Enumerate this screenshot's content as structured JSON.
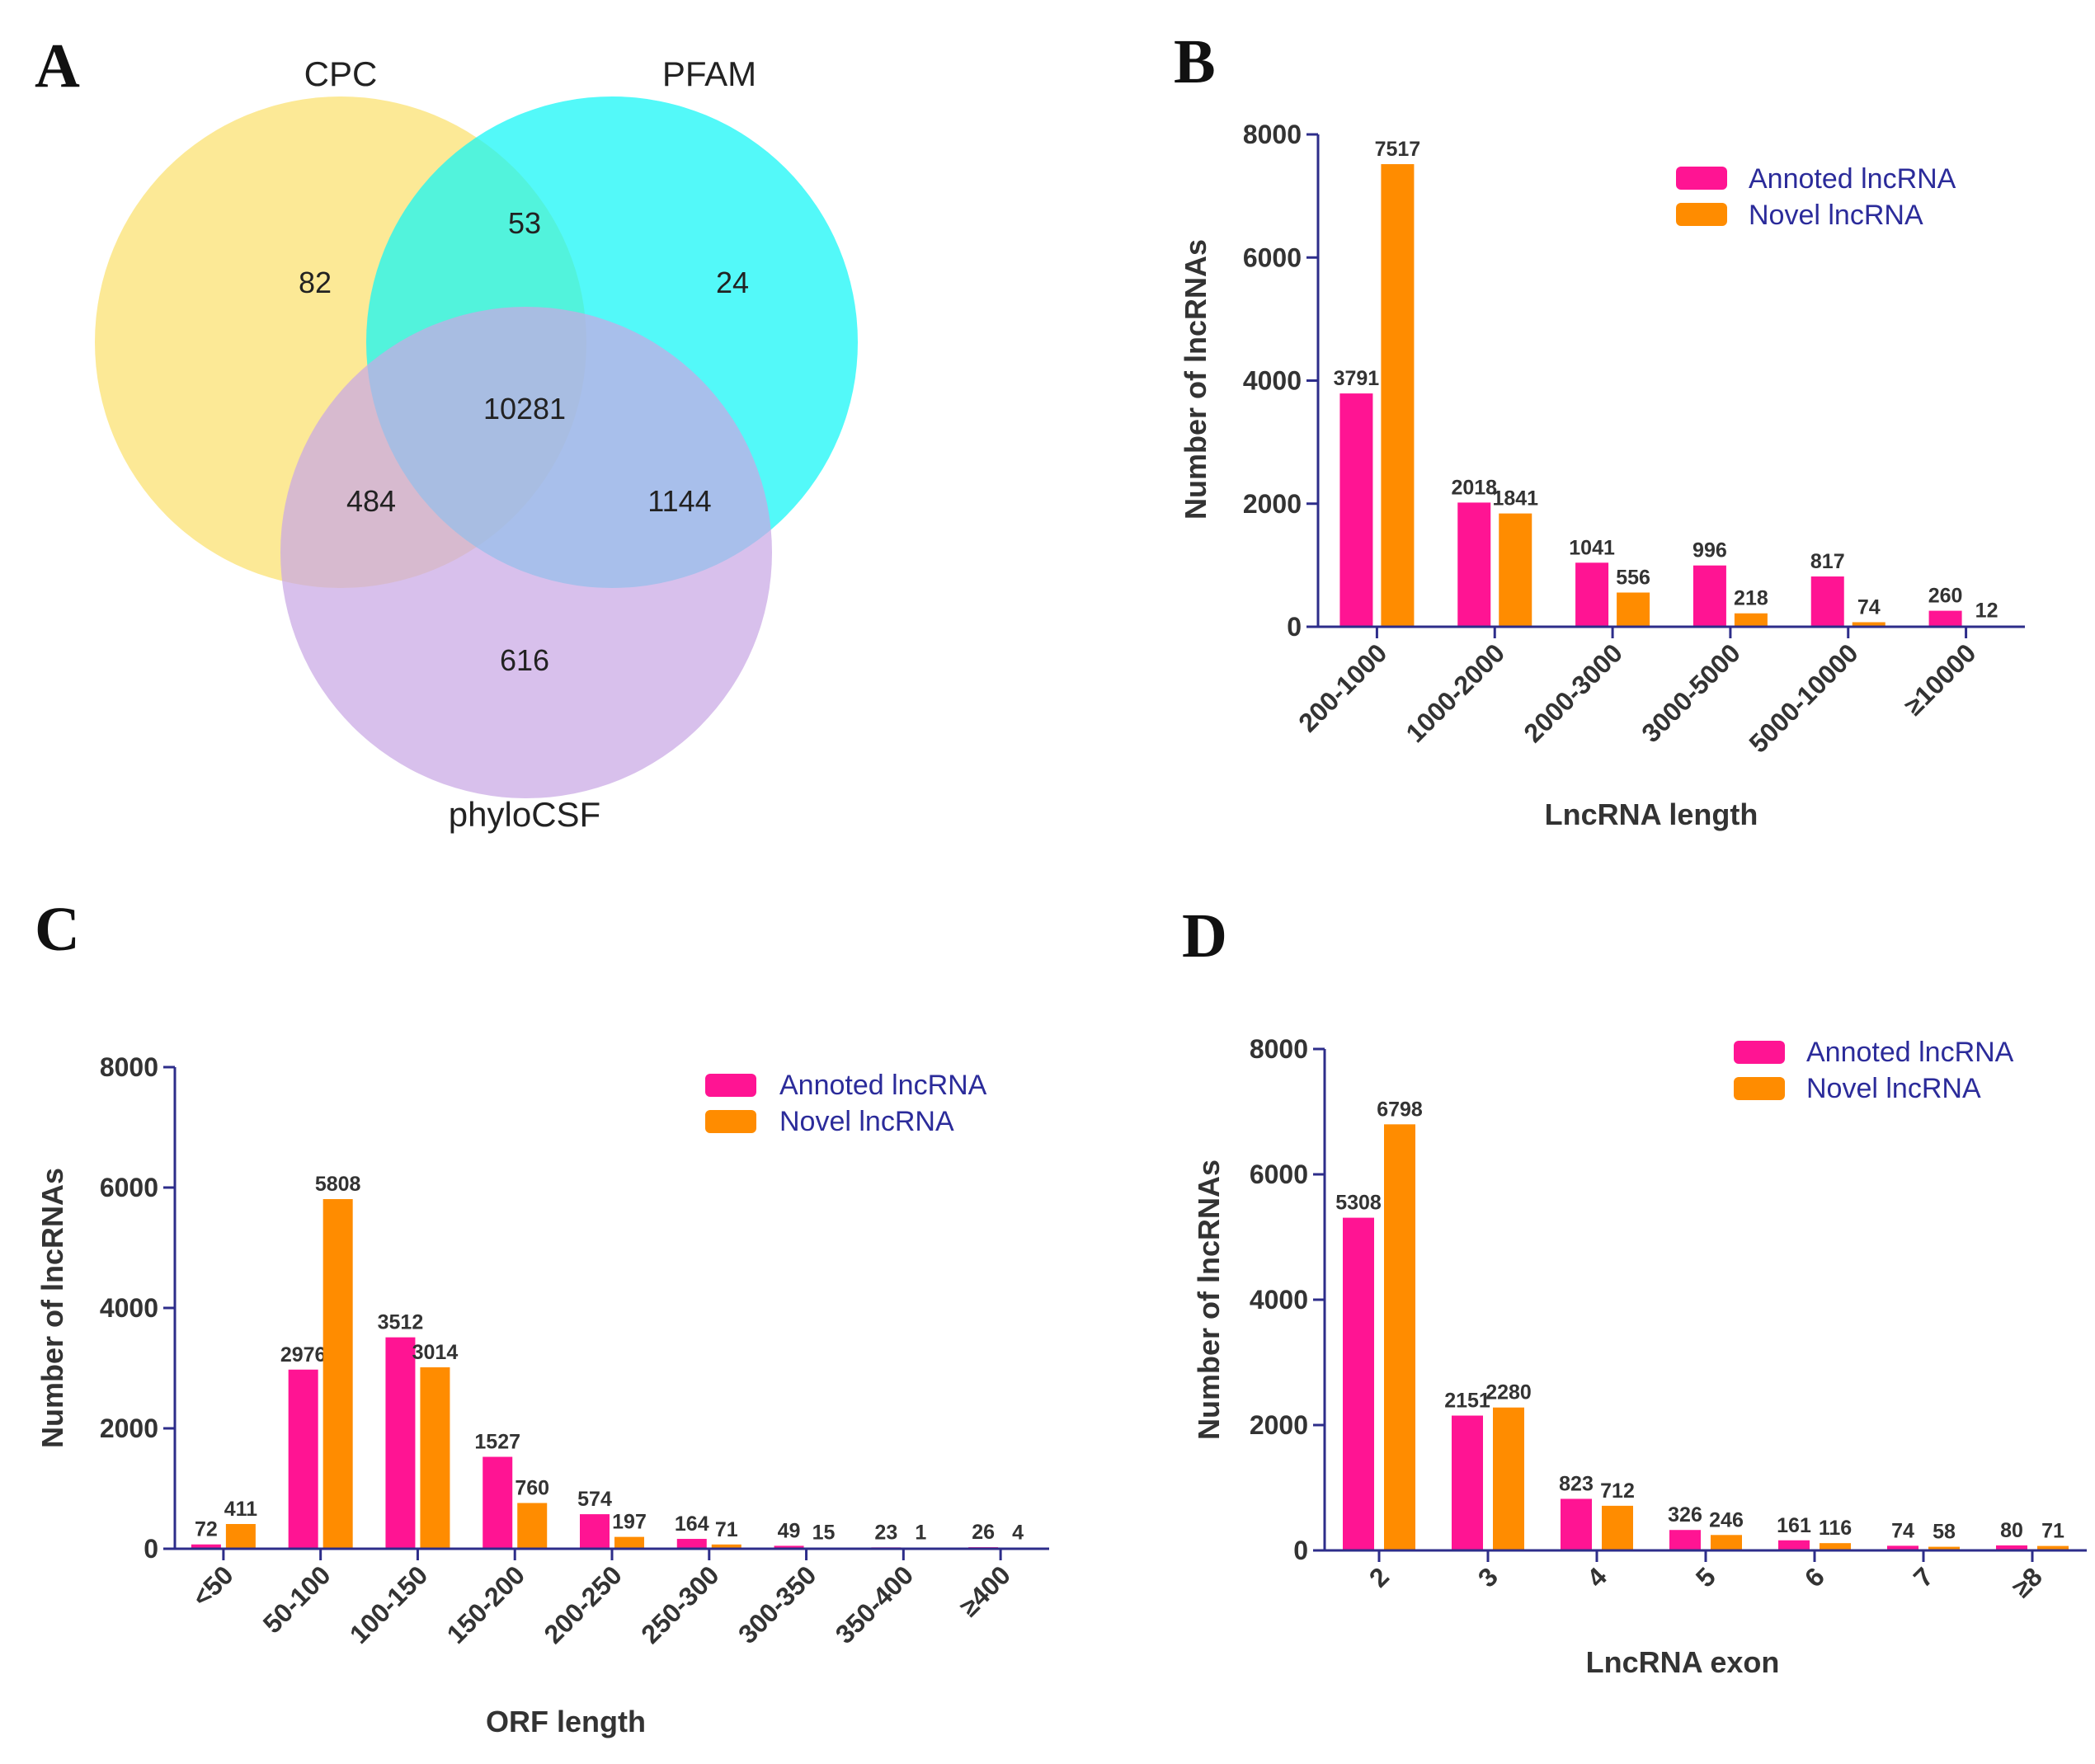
{
  "colors": {
    "annoted": "#ff1493",
    "novel": "#ff8c00",
    "axis": "#2d2d8a",
    "legend_text": "#2b2b9a",
    "venn_cpc": "#fbe06d",
    "venn_pfam": "#10f6f6",
    "venn_phylocsf": "#c9a8e4"
  },
  "panels": {
    "A": {
      "letter": "A"
    },
    "B": {
      "letter": "B"
    },
    "C": {
      "letter": "C"
    },
    "D": {
      "letter": "D"
    }
  },
  "venn": {
    "sets": {
      "cpc": "CPC",
      "pfam": "PFAM",
      "phylocsf": "phyloCSF"
    },
    "regions": {
      "cpc_only": "82",
      "cpc_pfam": "53",
      "pfam_only": "24",
      "all_three": "10281",
      "cpc_phylocsf": "484",
      "pfam_phylocsf": "1144",
      "phylocsf_only": "616"
    }
  },
  "legend": {
    "annoted": "Annoted lncRNA",
    "novel": "Novel lncRNA"
  },
  "chart_data": [
    {
      "id": "B",
      "type": "bar",
      "xlabel": "LncRNA length",
      "ylabel": "Number of lncRNAs",
      "ylim": [
        0,
        8000
      ],
      "yticks": [
        0,
        2000,
        4000,
        6000,
        8000
      ],
      "categories": [
        "200-1000",
        "1000-2000",
        "2000-3000",
        "3000-5000",
        "5000-10000",
        "≥10000"
      ],
      "series": [
        {
          "name": "Annoted lncRNA",
          "values": [
            3791,
            2018,
            1041,
            996,
            817,
            260
          ]
        },
        {
          "name": "Novel lncRNA",
          "values": [
            7517,
            1841,
            556,
            218,
            74,
            12
          ]
        }
      ],
      "legend_position": "top-right"
    },
    {
      "id": "C",
      "type": "bar",
      "xlabel": "ORF length",
      "ylabel": "Number of lncRNAs",
      "ylim": [
        0,
        8000
      ],
      "yticks": [
        0,
        2000,
        4000,
        6000,
        8000
      ],
      "categories": [
        "<50",
        "50-100",
        "100-150",
        "150-200",
        "200-250",
        "250-300",
        "300-350",
        "350-400",
        "≥400"
      ],
      "series": [
        {
          "name": "Annoted lncRNA",
          "values": [
            72,
            2976,
            3512,
            1527,
            574,
            164,
            49,
            23,
            26
          ]
        },
        {
          "name": "Novel lncRNA",
          "values": [
            411,
            5808,
            3014,
            760,
            197,
            71,
            15,
            1,
            4
          ]
        }
      ],
      "legend_position": "top-right"
    },
    {
      "id": "D",
      "type": "bar",
      "xlabel": "LncRNA exon",
      "ylabel": "Number of lncRNAs",
      "ylim": [
        0,
        8000
      ],
      "yticks": [
        0,
        2000,
        4000,
        6000,
        8000
      ],
      "categories": [
        "2",
        "3",
        "4",
        "5",
        "6",
        "7",
        "≥8"
      ],
      "series": [
        {
          "name": "Annoted lncRNA",
          "values": [
            5308,
            2151,
            823,
            326,
            161,
            74,
            80
          ]
        },
        {
          "name": "Novel lncRNA",
          "values": [
            6798,
            2280,
            712,
            246,
            116,
            58,
            71
          ]
        }
      ],
      "legend_position": "top-right"
    }
  ]
}
